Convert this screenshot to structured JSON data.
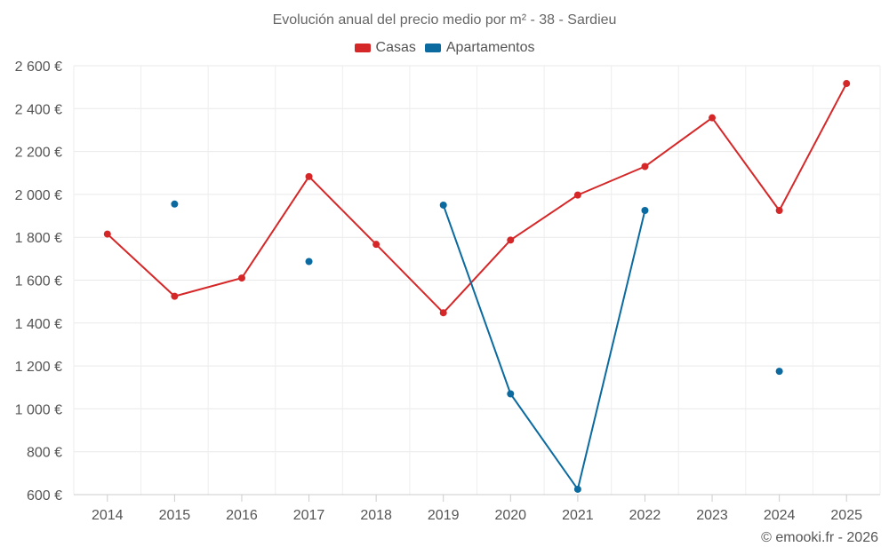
{
  "chart_data": {
    "type": "line",
    "title": "Evolución anual del precio medio por m² - 38 - Sardieu",
    "categories": [
      "2014",
      "2015",
      "2016",
      "2017",
      "2018",
      "2019",
      "2020",
      "2021",
      "2022",
      "2023",
      "2024",
      "2025"
    ],
    "series": [
      {
        "name": "Casas",
        "color": "#d62728",
        "values": [
          1815,
          1525,
          1610,
          2083,
          1767,
          1448,
          1787,
          1997,
          2130,
          2357,
          1925,
          2517
        ]
      },
      {
        "name": "Apartamentos",
        "color": "#0b6a9f",
        "values": [
          null,
          1955,
          null,
          1687,
          null,
          1950,
          1070,
          625,
          1925,
          null,
          1175,
          null
        ]
      }
    ],
    "yticks": [
      "600 €",
      "800 €",
      "1 000 €",
      "1 200 €",
      "1 400 €",
      "1 600 €",
      "1 800 €",
      "2 000 €",
      "2 200 €",
      "2 400 €",
      "2 600 €"
    ],
    "ylim": [
      600,
      2600
    ],
    "xlabel": "",
    "ylabel": "",
    "grid": true,
    "legend_position": "top-center"
  },
  "credits": "© emooki.fr - 2026"
}
